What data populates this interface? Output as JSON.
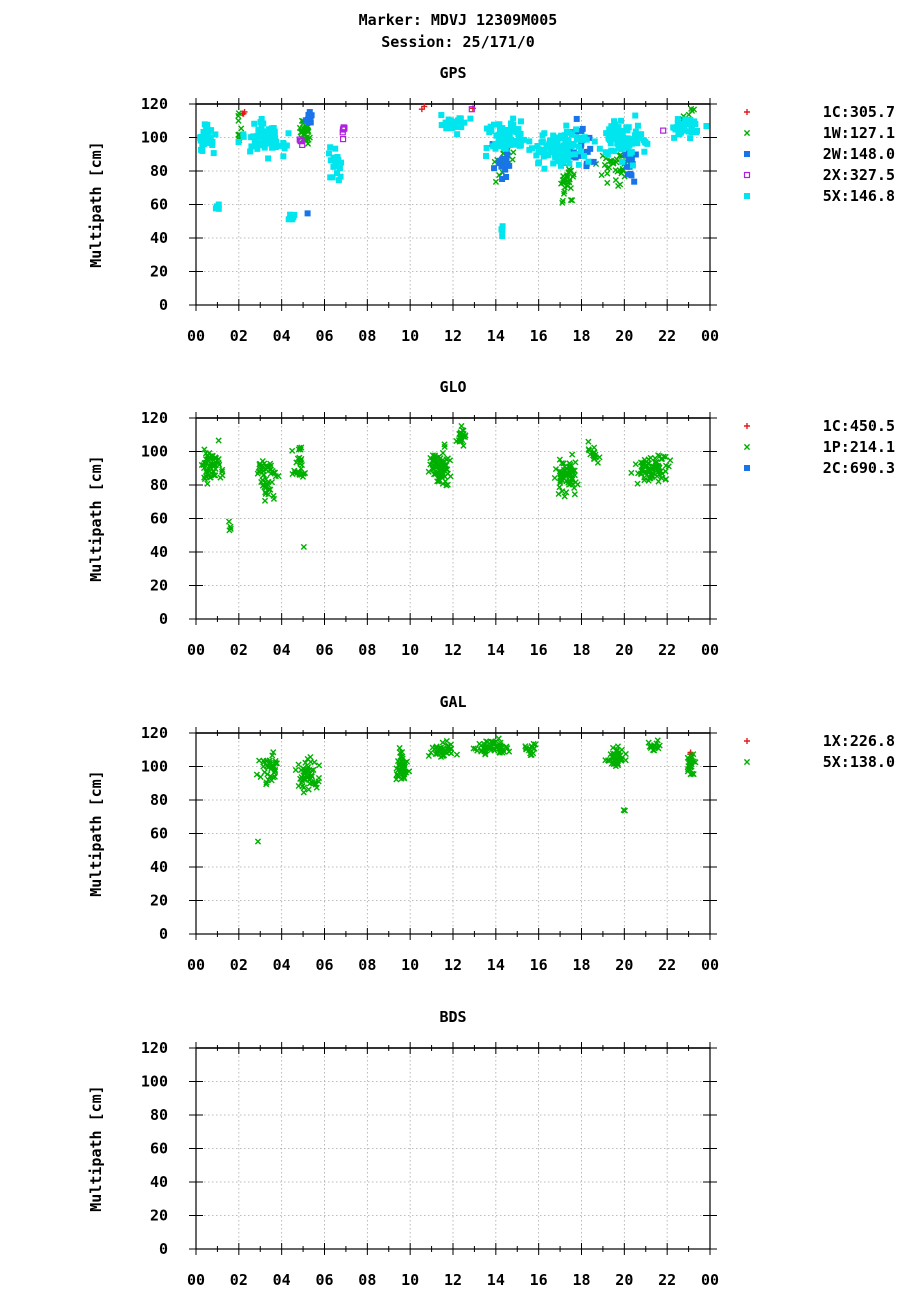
{
  "header": {
    "line1": "Marker: MDVJ 12309M005",
    "line2": "Session: 25/171/0"
  },
  "colors": {
    "1C": "#e41a1c",
    "1W": "#00b000",
    "1P": "#00b000",
    "5X": "#00b000",
    "2W": "#1874e8",
    "2C": "#1874e8",
    "2X": "#b020e0",
    "5X_gps": "#00e5ee"
  },
  "chart_data": [
    {
      "type": "scatter",
      "title": "GPS",
      "ylabel": "Multipath [cm]",
      "xlabel": "",
      "ylim": [
        0,
        120
      ],
      "xlim": [
        0,
        24
      ],
      "yticks": [
        "0",
        "20",
        "40",
        "60",
        "80",
        "100",
        "120"
      ],
      "xticks": [
        "00",
        "02",
        "04",
        "06",
        "08",
        "10",
        "12",
        "14",
        "16",
        "18",
        "20",
        "22",
        "00"
      ],
      "legend_position": "right",
      "series": [
        {
          "code": "1C",
          "name": "1C:305.7",
          "marker": "plus",
          "color": "#e41a1c",
          "clusters": [
            [
              2.2,
              115,
              0.2,
              4,
              3
            ],
            [
              10.6,
              117,
              0.1,
              2,
              2
            ],
            [
              12.9,
              118,
              0.1,
              2,
              1
            ]
          ]
        },
        {
          "code": "1W",
          "name": "1W:127.1",
          "marker": "cross",
          "color": "#00b000",
          "clusters": [
            [
              2.0,
              105,
              0.2,
              15,
              8
            ],
            [
              5.1,
              103,
              0.35,
              12,
              30
            ],
            [
              14.4,
              88,
              0.6,
              18,
              20
            ],
            [
              17.3,
              75,
              0.5,
              18,
              30
            ],
            [
              19.5,
              80,
              1.2,
              18,
              35
            ],
            [
              23.0,
              115,
              0.5,
              8,
              6
            ]
          ]
        },
        {
          "code": "2W",
          "name": "2W:148.0",
          "marker": "square",
          "color": "#1874e8",
          "clusters": [
            [
              5.3,
              112,
              0.2,
              8,
              10
            ],
            [
              5.2,
              54,
              0.05,
              1,
              1
            ],
            [
              14.3,
              90,
              0.6,
              18,
              20
            ],
            [
              17.8,
              95,
              0.9,
              18,
              30
            ],
            [
              20.2,
              85,
              0.6,
              15,
              15
            ]
          ]
        },
        {
          "code": "2X",
          "name": "2X:327.5",
          "marker": "open-square",
          "color": "#b020e0",
          "clusters": [
            [
              6.9,
              105,
              0.1,
              10,
              6
            ],
            [
              4.9,
              98,
              0.1,
              6,
              4
            ],
            [
              12.9,
              117,
              0.1,
              2,
              1
            ],
            [
              21.8,
              104,
              0.1,
              1,
              1
            ]
          ]
        },
        {
          "code": "5X",
          "name": "5X:146.8",
          "marker": "square",
          "color": "#00e5ee",
          "clusters": [
            [
              0.5,
              100,
              0.55,
              12,
              40
            ],
            [
              1.0,
              58,
              0.15,
              6,
              4
            ],
            [
              3.2,
              100,
              1.4,
              14,
              70
            ],
            [
              4.5,
              55,
              0.4,
              8,
              5
            ],
            [
              6.5,
              85,
              0.5,
              15,
              20
            ],
            [
              12.0,
              108,
              1.0,
              8,
              30
            ],
            [
              14.5,
              100,
              1.3,
              15,
              80
            ],
            [
              14.3,
              45,
              0.1,
              5,
              5
            ],
            [
              17.0,
              95,
              1.8,
              16,
              110
            ],
            [
              20.0,
              98,
              1.4,
              16,
              80
            ],
            [
              22.8,
              105,
              1.2,
              10,
              40
            ]
          ]
        }
      ]
    },
    {
      "type": "scatter",
      "title": "GLO",
      "ylabel": "Multipath [cm]",
      "xlabel": "",
      "ylim": [
        0,
        120
      ],
      "xlim": [
        0,
        24
      ],
      "yticks": [
        "0",
        "20",
        "40",
        "60",
        "80",
        "100",
        "120"
      ],
      "xticks": [
        "00",
        "02",
        "04",
        "06",
        "08",
        "10",
        "12",
        "14",
        "16",
        "18",
        "20",
        "22",
        "00"
      ],
      "legend_position": "right",
      "series": [
        {
          "code": "1C",
          "name": "1C:450.5",
          "marker": "plus",
          "color": "#e41a1c",
          "clusters": []
        },
        {
          "code": "1P",
          "name": "1P:214.1",
          "marker": "cross",
          "color": "#00b000",
          "clusters": [
            [
              0.7,
              92,
              0.7,
              16,
              60
            ],
            [
              1.6,
              55,
              0.15,
              6,
              4
            ],
            [
              3.3,
              85,
              0.7,
              16,
              50
            ],
            [
              4.8,
              95,
              0.5,
              15,
              25
            ],
            [
              5.0,
              43,
              0.05,
              1,
              1
            ],
            [
              11.4,
              90,
              0.8,
              16,
              80
            ],
            [
              12.4,
              110,
              0.3,
              8,
              20
            ],
            [
              17.3,
              85,
              0.7,
              16,
              60
            ],
            [
              18.6,
              100,
              0.5,
              10,
              15
            ],
            [
              21.3,
              90,
              1.2,
              14,
              80
            ]
          ]
        },
        {
          "code": "2C",
          "name": "2C:690.3",
          "marker": "square",
          "color": "#1874e8",
          "clusters": []
        }
      ]
    },
    {
      "type": "scatter",
      "title": "GAL",
      "ylabel": "Multipath [cm]",
      "xlabel": "",
      "ylim": [
        0,
        120
      ],
      "xlim": [
        0,
        24
      ],
      "yticks": [
        "0",
        "20",
        "40",
        "60",
        "80",
        "100",
        "120"
      ],
      "xticks": [
        "00",
        "02",
        "04",
        "06",
        "08",
        "10",
        "12",
        "14",
        "16",
        "18",
        "20",
        "22",
        "00"
      ],
      "legend_position": "right",
      "series": [
        {
          "code": "1X",
          "name": "1X:226.8",
          "marker": "plus",
          "color": "#e41a1c",
          "clusters": [
            [
              23.1,
              108,
              0.1,
              2,
              2
            ]
          ]
        },
        {
          "code": "5X",
          "name": "5X:138.0",
          "marker": "cross",
          "color": "#00b000",
          "clusters": [
            [
              3.4,
              100,
              0.6,
              14,
              35
            ],
            [
              2.9,
              55,
              0.05,
              1,
              1
            ],
            [
              5.2,
              95,
              0.7,
              14,
              50
            ],
            [
              9.6,
              100,
              0.4,
              12,
              45
            ],
            [
              11.5,
              110,
              0.9,
              8,
              40
            ],
            [
              13.8,
              112,
              1.2,
              7,
              55
            ],
            [
              15.7,
              110,
              0.6,
              6,
              15
            ],
            [
              19.6,
              105,
              0.6,
              10,
              40
            ],
            [
              20.0,
              74,
              0.05,
              1,
              2
            ],
            [
              21.5,
              112,
              0.7,
              6,
              15
            ],
            [
              23.1,
              100,
              0.3,
              14,
              25
            ]
          ]
        }
      ]
    },
    {
      "type": "scatter",
      "title": "BDS",
      "ylabel": "Multipath [cm]",
      "xlabel": "",
      "ylim": [
        0,
        120
      ],
      "xlim": [
        0,
        24
      ],
      "yticks": [
        "0",
        "20",
        "40",
        "60",
        "80",
        "100",
        "120"
      ],
      "xticks": [
        "00",
        "02",
        "04",
        "06",
        "08",
        "10",
        "12",
        "14",
        "16",
        "18",
        "20",
        "22",
        "00"
      ],
      "legend_position": "right",
      "series": []
    }
  ]
}
